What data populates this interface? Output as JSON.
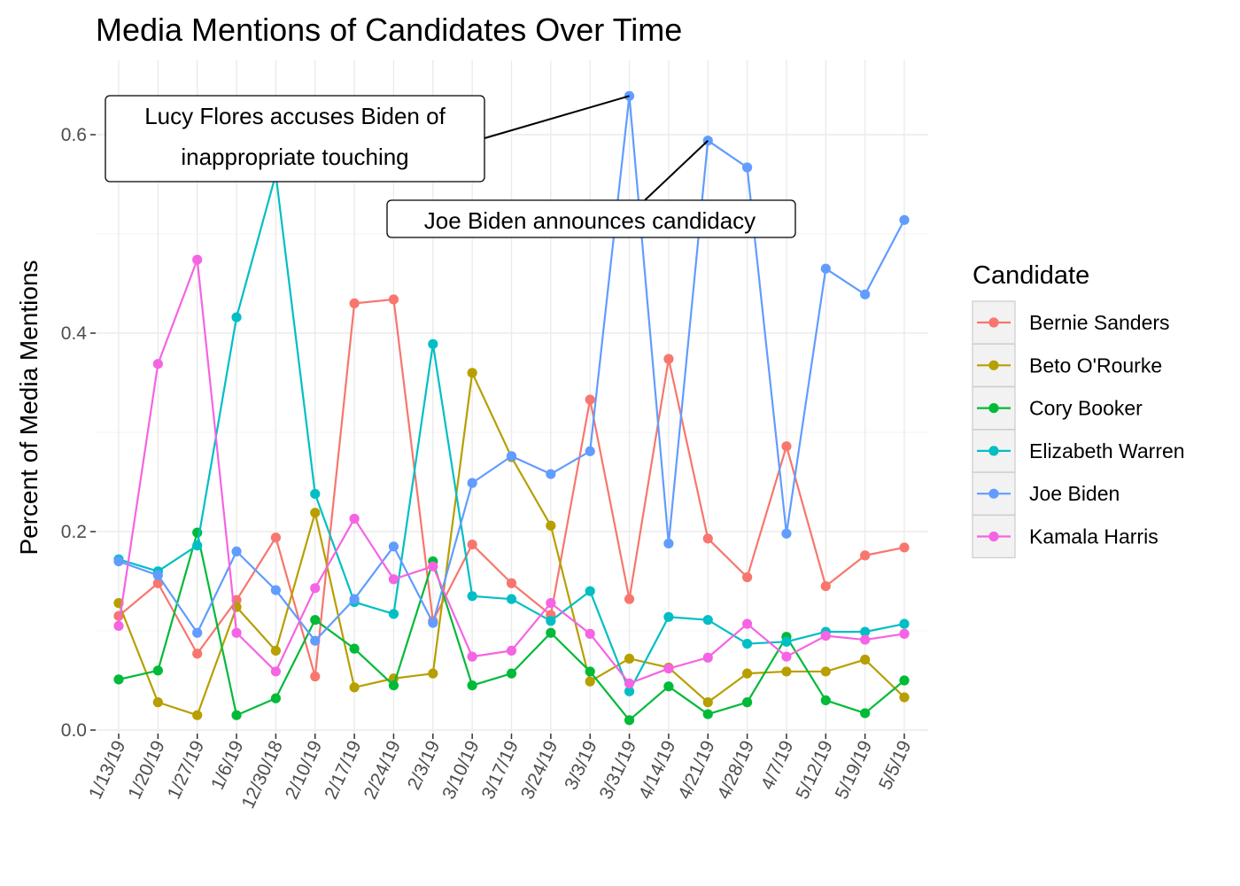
{
  "chart_data": {
    "type": "line",
    "title": "Media Mentions of Candidates Over Time",
    "xlabel": "",
    "ylabel": "Percent of Media Mentions",
    "ylim": [
      0,
      0.6
    ],
    "yticks": [
      "0.0",
      "0.2",
      "0.4",
      "0.6"
    ],
    "grid": true,
    "legend_title": "Candidate",
    "legend_position": "right",
    "categories": [
      "1/13/19",
      "1/20/19",
      "1/27/19",
      "1/6/19",
      "12/30/18",
      "2/10/19",
      "2/17/19",
      "2/24/19",
      "2/3/19",
      "3/10/19",
      "3/17/19",
      "3/24/19",
      "3/3/19",
      "3/31/19",
      "4/14/19",
      "4/21/19",
      "4/28/19",
      "4/7/19",
      "5/12/19",
      "5/19/19",
      "5/5/19"
    ],
    "series": [
      {
        "name": "Bernie Sanders",
        "color": "#F8766D",
        "values": [
          0.115,
          0.148,
          0.077,
          0.131,
          0.194,
          0.054,
          0.43,
          0.434,
          0.11,
          0.187,
          0.148,
          0.116,
          0.333,
          0.132,
          0.374,
          0.193,
          0.154,
          0.286,
          0.145,
          0.176,
          0.184
        ]
      },
      {
        "name": "Beto O'Rourke",
        "color": "#B79F00",
        "values": [
          0.128,
          0.028,
          0.015,
          0.124,
          0.08,
          0.219,
          0.043,
          0.052,
          0.057,
          0.36,
          0.275,
          0.206,
          0.049,
          0.072,
          0.063,
          0.028,
          0.057,
          0.059,
          0.059,
          0.071,
          0.033
        ]
      },
      {
        "name": "Cory Booker",
        "color": "#00BA38",
        "values": [
          0.051,
          0.06,
          0.199,
          0.015,
          0.032,
          0.111,
          0.082,
          0.045,
          0.17,
          0.045,
          0.057,
          0.098,
          0.059,
          0.01,
          0.044,
          0.016,
          0.028,
          0.094,
          0.03,
          0.017,
          0.05
        ]
      },
      {
        "name": "Elizabeth Warren",
        "color": "#00BFC4",
        "values": [
          0.172,
          0.16,
          0.186,
          0.416,
          0.56,
          0.238,
          0.129,
          0.117,
          0.389,
          0.135,
          0.132,
          0.11,
          0.14,
          0.039,
          0.114,
          0.111,
          0.087,
          0.089,
          0.099,
          0.099,
          0.107
        ]
      },
      {
        "name": "Joe Biden",
        "color": "#619CFF",
        "values": [
          0.17,
          0.156,
          0.098,
          0.18,
          0.141,
          0.09,
          0.132,
          0.185,
          0.108,
          0.249,
          0.276,
          0.258,
          0.281,
          0.639,
          0.188,
          0.594,
          0.567,
          0.198,
          0.465,
          0.439,
          0.514
        ]
      },
      {
        "name": "Kamala Harris",
        "color": "#F564E3",
        "values": [
          0.105,
          0.369,
          0.474,
          0.098,
          0.059,
          0.143,
          0.213,
          0.152,
          0.165,
          0.074,
          0.08,
          0.128,
          0.097,
          0.047,
          0.062,
          0.073,
          0.107,
          0.074,
          0.095,
          0.091,
          0.097
        ]
      }
    ],
    "annotations": [
      {
        "lines": [
          "Lucy Flores accuses Biden of",
          "inappropriate touching"
        ],
        "series": "Joe Biden",
        "category": "3/31/19"
      },
      {
        "lines": [
          "Joe Biden announces candidacy"
        ],
        "series": "Joe Biden",
        "category": "4/21/19"
      }
    ]
  }
}
